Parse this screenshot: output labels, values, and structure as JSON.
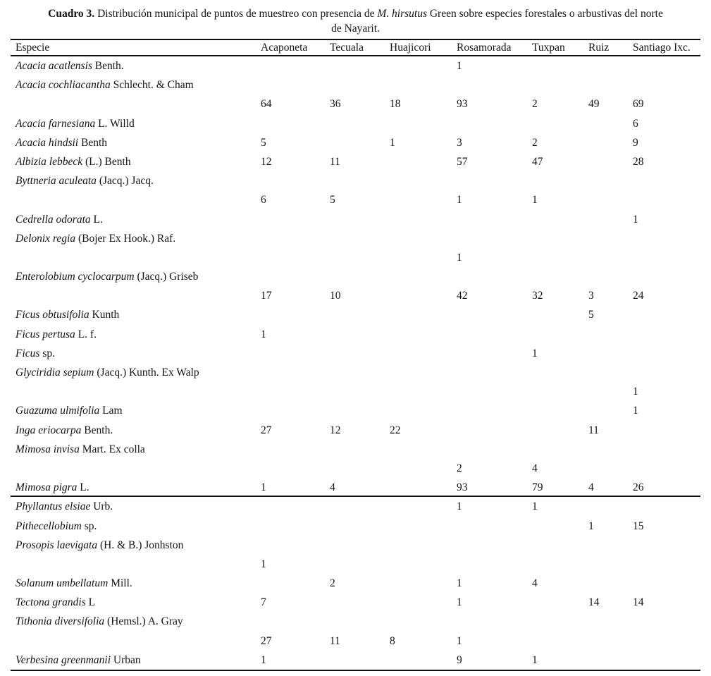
{
  "title": {
    "bold_label": "Cuadro 3.",
    "segment1": " Distribución municipal de puntos de muestreo con presencia de ",
    "species_italic": "M. hirsutus",
    "segment2": " Green sobre especies forestales o arbustivas del norte",
    "line2": "de Nayarit."
  },
  "table": {
    "columns": [
      "Especie",
      "Acaponeta",
      "Tecuala",
      "Huajicori",
      "Rosamorada",
      "Tuxpan",
      "Ruiz",
      "Santiago Ixc."
    ],
    "rows": [
      {
        "sci": "Acacia acatlensis",
        "auth": "Benth.",
        "wrap": false,
        "rule_after": false,
        "values": [
          "",
          "",
          "",
          "1",
          "",
          "",
          ""
        ]
      },
      {
        "sci": "Acacia cochliacantha",
        "auth": "Schlecht. & Cham",
        "wrap": true,
        "rule_after": false,
        "values": [
          "64",
          "36",
          "18",
          "93",
          "2",
          "49",
          "69"
        ]
      },
      {
        "sci": "Acacia farnesiana",
        "auth": "L. Willd",
        "wrap": false,
        "rule_after": false,
        "values": [
          "",
          "",
          "",
          "",
          "",
          "",
          "6"
        ]
      },
      {
        "sci": "Acacia hindsii",
        "auth": "Benth",
        "wrap": false,
        "rule_after": false,
        "values": [
          "5",
          "",
          "1",
          "3",
          "2",
          "",
          "9"
        ]
      },
      {
        "sci": "Albizia lebbeck",
        "auth": "(L.) Benth",
        "wrap": false,
        "rule_after": false,
        "values": [
          "12",
          "11",
          "",
          "57",
          "47",
          "",
          "28"
        ]
      },
      {
        "sci": "Byttneria aculeata",
        "auth": "(Jacq.) Jacq.",
        "wrap": true,
        "rule_after": false,
        "values": [
          "6",
          "5",
          "",
          "1",
          "1",
          "",
          ""
        ]
      },
      {
        "sci": "Cedrella odorata",
        "auth": "L.",
        "wrap": false,
        "rule_after": false,
        "values": [
          "",
          "",
          "",
          "",
          "",
          "",
          "1"
        ]
      },
      {
        "sci": "Delonix regia",
        "auth": "(Bojer Ex Hook.) Raf.",
        "wrap": true,
        "rule_after": false,
        "values": [
          "",
          "",
          "",
          "1",
          "",
          "",
          ""
        ]
      },
      {
        "sci": "Enterolobium cyclocarpum",
        "auth": "(Jacq.) Griseb",
        "wrap": true,
        "rule_after": false,
        "values": [
          "17",
          "10",
          "",
          "42",
          "32",
          "3",
          "24"
        ]
      },
      {
        "sci": "Ficus obtusifolia",
        "auth": "Kunth",
        "wrap": false,
        "rule_after": false,
        "values": [
          "",
          "",
          "",
          "",
          "",
          "5",
          ""
        ]
      },
      {
        "sci": "Ficus pertusa",
        "auth": "L. f.",
        "wrap": false,
        "rule_after": false,
        "values": [
          "1",
          "",
          "",
          "",
          "",
          "",
          ""
        ]
      },
      {
        "sci": "Ficus",
        "auth": "sp.",
        "wrap": false,
        "rule_after": false,
        "values": [
          "",
          "",
          "",
          "",
          "1",
          "",
          ""
        ]
      },
      {
        "sci": "Glyciridia sepium",
        "auth": "(Jacq.) Kunth. Ex Walp",
        "wrap": true,
        "rule_after": false,
        "values": [
          "",
          "",
          "",
          "",
          "",
          "",
          "1"
        ]
      },
      {
        "sci": "Guazuma ulmifolia",
        "auth": "Lam",
        "wrap": false,
        "rule_after": false,
        "values": [
          "",
          "",
          "",
          "",
          "",
          "",
          "1"
        ]
      },
      {
        "sci": "Inga eriocarpa",
        "auth": "Benth.",
        "wrap": false,
        "rule_after": false,
        "values": [
          "27",
          "12",
          "22",
          "",
          "",
          "11",
          ""
        ]
      },
      {
        "sci": "Mimosa invisa",
        "auth": "Mart. Ex colla",
        "wrap": true,
        "rule_after": false,
        "values": [
          "",
          "",
          "",
          "2",
          "4",
          "",
          ""
        ]
      },
      {
        "sci": "Mimosa pigra",
        "auth": "L.",
        "wrap": false,
        "rule_after": true,
        "values": [
          "1",
          "4",
          "",
          "93",
          "79",
          "4",
          "26"
        ]
      },
      {
        "sci": "Phyllantus elsiae",
        "auth": "Urb.",
        "wrap": false,
        "rule_after": false,
        "values": [
          "",
          "",
          "",
          "1",
          "1",
          "",
          ""
        ]
      },
      {
        "sci": "Pithecellobium",
        "auth": "sp.",
        "wrap": false,
        "rule_after": false,
        "values": [
          "",
          "",
          "",
          "",
          "",
          "1",
          "15"
        ]
      },
      {
        "sci": "Prosopis laevigata",
        "auth": "(H. & B.) Jonhston",
        "wrap": true,
        "rule_after": false,
        "values": [
          "1",
          "",
          "",
          "",
          "",
          "",
          ""
        ]
      },
      {
        "sci": "Solanum umbellatum",
        "auth": "Mill.",
        "wrap": false,
        "rule_after": false,
        "values": [
          "",
          "2",
          "",
          "1",
          "4",
          "",
          ""
        ]
      },
      {
        "sci": "Tectona grandis",
        "auth": "L",
        "wrap": false,
        "rule_after": false,
        "values": [
          "7",
          "",
          "",
          "1",
          "",
          "14",
          "14"
        ]
      },
      {
        "sci": "Tithonia diversifolia",
        "auth": "(Hemsl.) A. Gray",
        "wrap": true,
        "rule_after": false,
        "values": [
          "27",
          "11",
          "8",
          "1",
          "",
          "",
          ""
        ]
      },
      {
        "sci": "Verbesina greenmanii",
        "auth": "Urban",
        "wrap": false,
        "rule_after": false,
        "values": [
          "1",
          "",
          "",
          "9",
          "1",
          "",
          ""
        ]
      }
    ]
  }
}
